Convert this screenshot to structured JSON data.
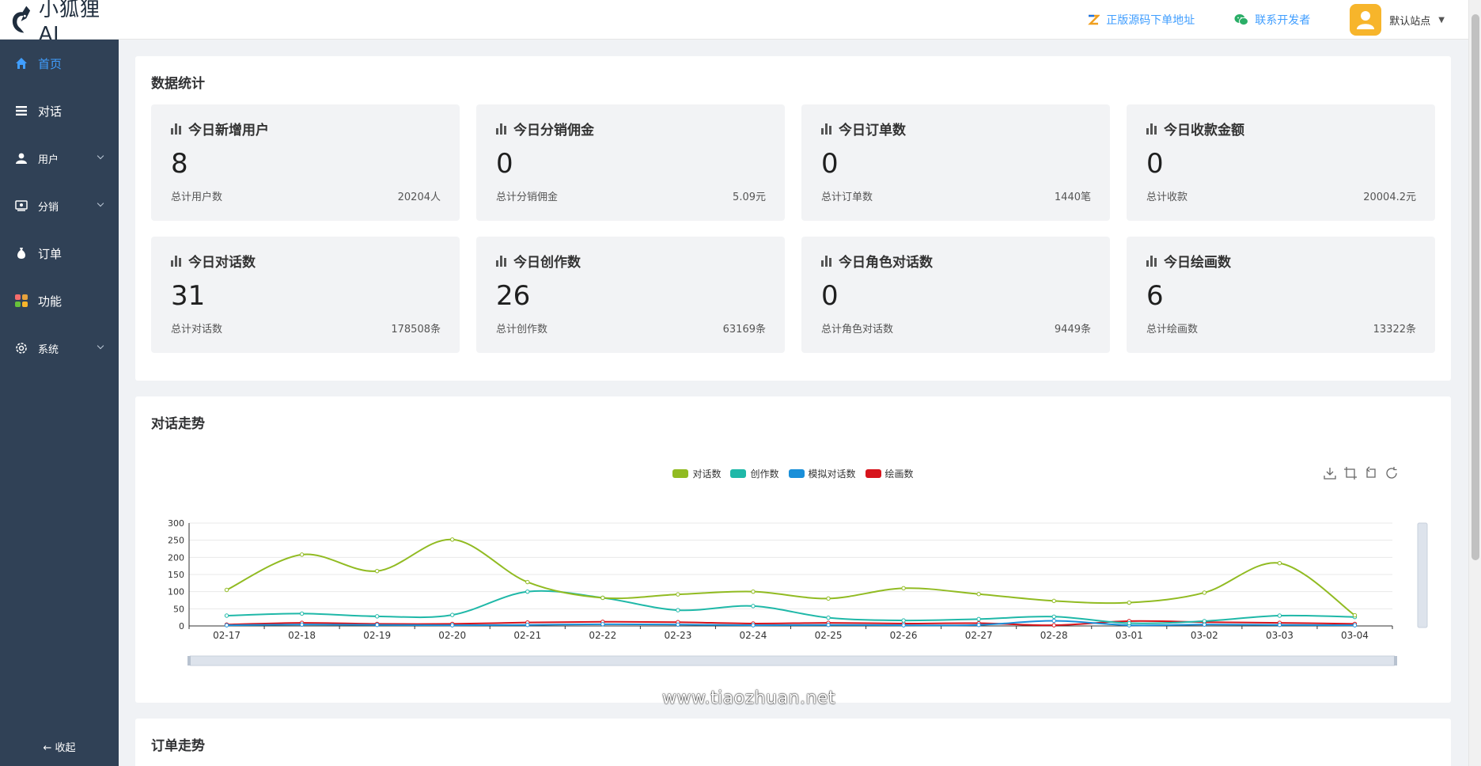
{
  "brand": {
    "name": "小狐狸AI"
  },
  "header": {
    "links": [
      {
        "label": "正版源码下单地址",
        "icon": "zhi-logo-icon"
      },
      {
        "label": "联系开发者",
        "icon": "wechat-icon"
      }
    ],
    "user": {
      "site": "默认站点",
      "icon": "user-avatar-icon"
    }
  },
  "sidebar": {
    "items": [
      {
        "label": "首页",
        "icon": "home-icon",
        "active": true,
        "expandable": false
      },
      {
        "label": "对话",
        "icon": "list-icon",
        "active": false,
        "expandable": false
      },
      {
        "label": "用户",
        "icon": "user-icon",
        "active": false,
        "expandable": true
      },
      {
        "label": "分销",
        "icon": "distribution-icon",
        "active": false,
        "expandable": true
      },
      {
        "label": "订单",
        "icon": "moneybag-icon",
        "active": false,
        "expandable": false
      },
      {
        "label": "功能",
        "icon": "apps-icon",
        "active": false,
        "expandable": false
      },
      {
        "label": "系统",
        "icon": "settings-icon",
        "active": false,
        "expandable": true
      }
    ],
    "collapse_label": "← 收起"
  },
  "stats_section": {
    "title": "数据统计",
    "cards": [
      {
        "title": "今日新增用户",
        "value": "8",
        "foot_label": "总计用户数",
        "foot_value": "20204人"
      },
      {
        "title": "今日分销佣金",
        "value": "0",
        "foot_label": "总计分销佣金",
        "foot_value": "5.09元"
      },
      {
        "title": "今日订单数",
        "value": "0",
        "foot_label": "总计订单数",
        "foot_value": "1440笔"
      },
      {
        "title": "今日收款金额",
        "value": "0",
        "foot_label": "总计收款",
        "foot_value": "20004.2元"
      },
      {
        "title": "今日对话数",
        "value": "31",
        "foot_label": "总计对话数",
        "foot_value": "178508条"
      },
      {
        "title": "今日创作数",
        "value": "26",
        "foot_label": "总计创作数",
        "foot_value": "63169条"
      },
      {
        "title": "今日角色对话数",
        "value": "0",
        "foot_label": "总计角色对话数",
        "foot_value": "9449条"
      },
      {
        "title": "今日绘画数",
        "value": "6",
        "foot_label": "总计绘画数",
        "foot_value": "13322条"
      }
    ]
  },
  "chart_section": {
    "title": "对话走势"
  },
  "order_section": {
    "title": "订单走势"
  },
  "watermark": "www.tiaozhuan.net",
  "chart_data": {
    "type": "line",
    "smooth": true,
    "categories": [
      "02-17",
      "02-18",
      "02-19",
      "02-20",
      "02-21",
      "02-22",
      "02-23",
      "02-24",
      "02-25",
      "02-26",
      "02-27",
      "02-28",
      "03-01",
      "03-02",
      "03-03",
      "03-04"
    ],
    "ylim": [
      0,
      300
    ],
    "yticks": [
      0,
      50,
      100,
      150,
      200,
      250,
      300
    ],
    "grid": true,
    "legend_position": "top-center",
    "toolbox": [
      "download-icon",
      "zoom-select-icon",
      "zoom-reset-icon",
      "refresh-icon"
    ],
    "series": [
      {
        "name": "对话数",
        "color": "#91bb22",
        "values": [
          105,
          208,
          160,
          252,
          128,
          82,
          92,
          100,
          80,
          110,
          93,
          73,
          68,
          97,
          183,
          31
        ]
      },
      {
        "name": "创作数",
        "color": "#1fb8a8",
        "values": [
          30,
          36,
          28,
          32,
          100,
          82,
          46,
          58,
          24,
          16,
          20,
          27,
          8,
          14,
          30,
          26
        ]
      },
      {
        "name": "模拟对话数",
        "color": "#1a8fd9",
        "values": [
          2,
          4,
          3,
          2,
          3,
          5,
          4,
          2,
          3,
          2,
          3,
          15,
          2,
          4,
          3,
          2
        ]
      },
      {
        "name": "绘画数",
        "color": "#d7141c",
        "values": [
          4,
          9,
          6,
          6,
          10,
          12,
          11,
          7,
          9,
          7,
          8,
          2,
          14,
          11,
          9,
          6
        ]
      }
    ]
  }
}
